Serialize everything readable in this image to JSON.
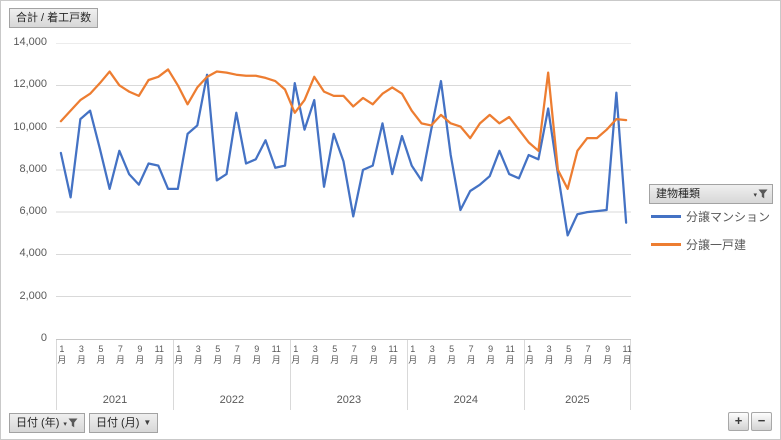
{
  "chart": {
    "value_field_button": "合計 / 着工戸数",
    "legend_field_button": "建物種類",
    "year_field_button": "日付 (年)",
    "month_field_button": "日付 (月)",
    "expand_button_label": "+",
    "collapse_button_label": "−",
    "icons": {
      "caret_small": "▾",
      "caret_solid": "▼"
    },
    "colors": {
      "series_blue": "#4472C4",
      "series_orange": "#ED7D31",
      "gridline": "#D9D9D9",
      "axis_text": "#595959"
    }
  },
  "chart_data": {
    "type": "line",
    "title": "合計 / 着工戸数",
    "legend_title": "建物種類",
    "legend_position": "right",
    "grid": true,
    "xlabel": "",
    "ylabel": "",
    "ylim": [
      0,
      14000
    ],
    "y_tick_values": [
      0,
      2000,
      4000,
      6000,
      8000,
      10000,
      12000,
      14000
    ],
    "y_tick_labels": [
      "0",
      "2,000",
      "4,000",
      "6,000",
      "8,000",
      "10,000",
      "12,000",
      "14,000"
    ],
    "x_axis": {
      "years": [
        {
          "label": "2021",
          "n_months": 12
        },
        {
          "label": "2022",
          "n_months": 12
        },
        {
          "label": "2023",
          "n_months": 12
        },
        {
          "label": "2024",
          "n_months": 12
        },
        {
          "label": "2025",
          "n_months": 11
        }
      ],
      "month_tick_numbers": [
        1,
        3,
        5,
        7,
        9,
        11
      ],
      "month_suffix": "月"
    },
    "series": [
      {
        "name": "分譲マンション",
        "color": "#4472C4",
        "values": [
          8800,
          6700,
          10400,
          10800,
          9000,
          7100,
          8900,
          7800,
          7300,
          8300,
          8200,
          7100,
          7100,
          9700,
          10100,
          12500,
          7500,
          7800,
          10700,
          8300,
          8500,
          9400,
          8100,
          8200,
          12100,
          9900,
          11300,
          7200,
          9700,
          8400,
          5800,
          8000,
          8200,
          10200,
          7800,
          9600,
          8200,
          7500,
          9900,
          12200,
          8700,
          6100,
          7000,
          7300,
          7700,
          8900,
          7800,
          7600,
          8700,
          8500,
          10900,
          7800,
          4900,
          5900,
          6000,
          6050,
          6100,
          11650,
          5500
        ]
      },
      {
        "name": "分譲一戸建",
        "color": "#ED7D31",
        "values": [
          10300,
          10800,
          11300,
          11600,
          12100,
          12650,
          12000,
          11700,
          11500,
          12250,
          12400,
          12750,
          12000,
          11100,
          11900,
          12400,
          12650,
          12600,
          12500,
          12450,
          12450,
          12350,
          12200,
          11800,
          10700,
          11300,
          12400,
          11700,
          11500,
          11500,
          11000,
          11400,
          11100,
          11600,
          11900,
          11600,
          10800,
          10200,
          10100,
          10600,
          10200,
          10050,
          9500,
          10200,
          10600,
          10200,
          10500,
          9900,
          9300,
          8900,
          12600,
          8000,
          7100,
          8900,
          9500,
          9500,
          9900,
          10400,
          10350
        ]
      }
    ]
  }
}
